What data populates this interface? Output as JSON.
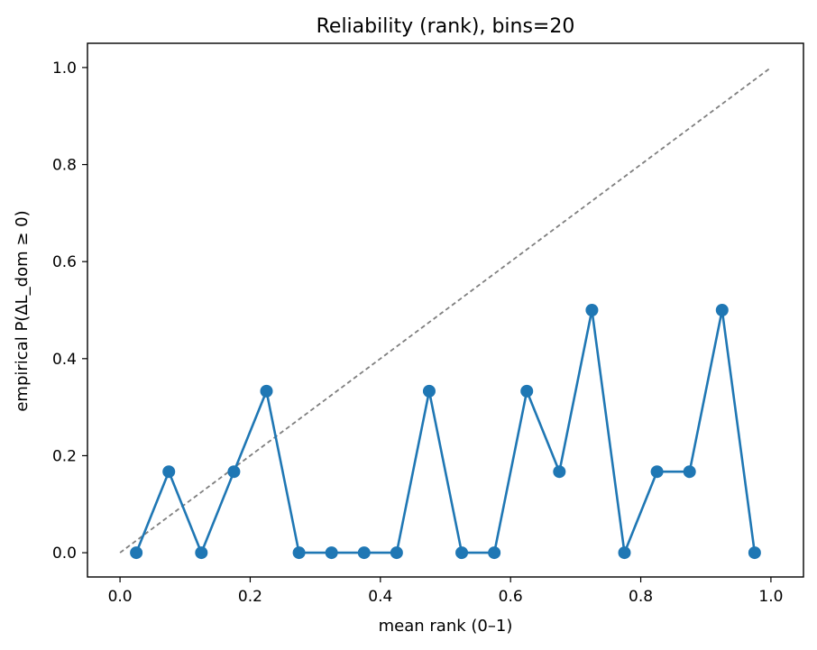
{
  "chart_data": {
    "type": "line",
    "title": "Reliability (rank), bins=20",
    "xlabel": "mean rank (0–1)",
    "ylabel": "empirical P(ΔL_dom ≥ 0)",
    "xlim": [
      -0.05,
      1.05
    ],
    "ylim": [
      -0.05,
      1.05
    ],
    "xticks": [
      0.0,
      0.2,
      0.4,
      0.6,
      0.8,
      1.0
    ],
    "xtick_labels": [
      "0.0",
      "0.2",
      "0.4",
      "0.6",
      "0.8",
      "1.0"
    ],
    "yticks": [
      0.0,
      0.2,
      0.4,
      0.6,
      0.8,
      1.0
    ],
    "ytick_labels": [
      "0.0",
      "0.2",
      "0.4",
      "0.6",
      "0.8",
      "1.0"
    ],
    "grid": false,
    "series": [
      {
        "color": "#1f77b4",
        "marker": "circle",
        "x": [
          0.025,
          0.075,
          0.125,
          0.175,
          0.225,
          0.275,
          0.325,
          0.375,
          0.425,
          0.475,
          0.525,
          0.575,
          0.625,
          0.675,
          0.725,
          0.775,
          0.825,
          0.875,
          0.925,
          0.975
        ],
        "y": [
          0.0,
          0.167,
          0.0,
          0.167,
          0.333,
          0.0,
          0.0,
          0.0,
          0.0,
          0.333,
          0.0,
          0.0,
          0.333,
          0.167,
          0.5,
          0.0,
          0.167,
          0.167,
          0.5,
          0.0
        ]
      }
    ],
    "reference_line": {
      "style": "dashed",
      "color": "#7f7f7f",
      "x": [
        0.0,
        1.0
      ],
      "y": [
        0.0,
        1.0
      ]
    }
  }
}
